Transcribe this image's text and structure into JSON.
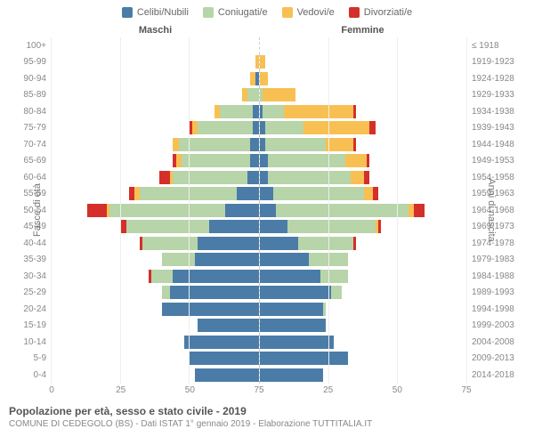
{
  "chart": {
    "type": "population-pyramid",
    "legend": [
      {
        "label": "Celibi/Nubili",
        "color": "#4b7ca8"
      },
      {
        "label": "Coniugati/e",
        "color": "#b7d5a8"
      },
      {
        "label": "Vedovi/e",
        "color": "#f8c052"
      },
      {
        "label": "Divorziati/e",
        "color": "#d52f2b"
      }
    ],
    "header_male": "Maschi",
    "header_female": "Femmine",
    "y_label_left": "Fasce di età",
    "y_label_right": "Anni di nascita",
    "x_max": 75,
    "x_ticks_left": [
      75,
      50,
      25,
      0
    ],
    "x_ticks_right": [
      0,
      25,
      50,
      75
    ],
    "colors": {
      "celibi": "#4b7ca8",
      "coniugati": "#b7d5a8",
      "vedovi": "#f8c052",
      "divorziati": "#d52f2b",
      "grid": "#eeeeee",
      "axis_line": "#cccccc",
      "text": "#888888",
      "bg": "#ffffff"
    },
    "font_size_labels": 10,
    "font_size_legend": 11,
    "rows": [
      {
        "age": "100+",
        "year": "≤ 1918",
        "m": [
          0,
          0,
          0,
          0
        ],
        "f": [
          0,
          0,
          0,
          0
        ]
      },
      {
        "age": "95-99",
        "year": "1919-1923",
        "m": [
          0,
          0,
          1,
          0
        ],
        "f": [
          0,
          0,
          2,
          0
        ]
      },
      {
        "age": "90-94",
        "year": "1924-1928",
        "m": [
          1,
          0,
          2,
          0
        ],
        "f": [
          0,
          0,
          3,
          0
        ]
      },
      {
        "age": "85-89",
        "year": "1929-1933",
        "m": [
          0,
          4,
          2,
          0
        ],
        "f": [
          0,
          1,
          12,
          0
        ]
      },
      {
        "age": "80-84",
        "year": "1934-1938",
        "m": [
          2,
          12,
          2,
          0
        ],
        "f": [
          1,
          8,
          25,
          1
        ]
      },
      {
        "age": "75-79",
        "year": "1939-1943",
        "m": [
          2,
          20,
          2,
          1
        ],
        "f": [
          2,
          14,
          24,
          2
        ]
      },
      {
        "age": "70-74",
        "year": "1944-1948",
        "m": [
          3,
          26,
          2,
          0
        ],
        "f": [
          2,
          22,
          10,
          1
        ]
      },
      {
        "age": "65-69",
        "year": "1949-1953",
        "m": [
          3,
          25,
          2,
          1
        ],
        "f": [
          3,
          28,
          8,
          1
        ]
      },
      {
        "age": "60-64",
        "year": "1954-1958",
        "m": [
          4,
          27,
          1,
          4
        ],
        "f": [
          3,
          30,
          5,
          2
        ]
      },
      {
        "age": "55-59",
        "year": "1959-1963",
        "m": [
          8,
          35,
          2,
          2
        ],
        "f": [
          5,
          33,
          3,
          2
        ]
      },
      {
        "age": "50-54",
        "year": "1964-1968",
        "m": [
          12,
          42,
          1,
          7
        ],
        "f": [
          6,
          48,
          2,
          4
        ]
      },
      {
        "age": "45-49",
        "year": "1969-1973",
        "m": [
          18,
          30,
          0,
          2
        ],
        "f": [
          10,
          32,
          1,
          1
        ]
      },
      {
        "age": "40-44",
        "year": "1974-1978",
        "m": [
          22,
          20,
          0,
          1
        ],
        "f": [
          14,
          20,
          0,
          1
        ]
      },
      {
        "age": "35-39",
        "year": "1979-1983",
        "m": [
          23,
          12,
          0,
          0
        ],
        "f": [
          18,
          14,
          0,
          0
        ]
      },
      {
        "age": "30-34",
        "year": "1984-1988",
        "m": [
          31,
          8,
          0,
          1
        ],
        "f": [
          22,
          10,
          0,
          0
        ]
      },
      {
        "age": "25-29",
        "year": "1989-1993",
        "m": [
          32,
          3,
          0,
          0
        ],
        "f": [
          26,
          4,
          0,
          0
        ]
      },
      {
        "age": "20-24",
        "year": "1994-1998",
        "m": [
          35,
          0,
          0,
          0
        ],
        "f": [
          23,
          1,
          0,
          0
        ]
      },
      {
        "age": "15-19",
        "year": "1999-2003",
        "m": [
          22,
          0,
          0,
          0
        ],
        "f": [
          24,
          0,
          0,
          0
        ]
      },
      {
        "age": "10-14",
        "year": "2004-2008",
        "m": [
          27,
          0,
          0,
          0
        ],
        "f": [
          27,
          0,
          0,
          0
        ]
      },
      {
        "age": "5-9",
        "year": "2009-2013",
        "m": [
          25,
          0,
          0,
          0
        ],
        "f": [
          32,
          0,
          0,
          0
        ]
      },
      {
        "age": "0-4",
        "year": "2014-2018",
        "m": [
          23,
          0,
          0,
          0
        ],
        "f": [
          23,
          0,
          0,
          0
        ]
      }
    ],
    "title": "Popolazione per età, sesso e stato civile - 2019",
    "subtitle": "COMUNE DI CEDEGOLO (BS) - Dati ISTAT 1° gennaio 2019 - Elaborazione TUTTITALIA.IT"
  }
}
